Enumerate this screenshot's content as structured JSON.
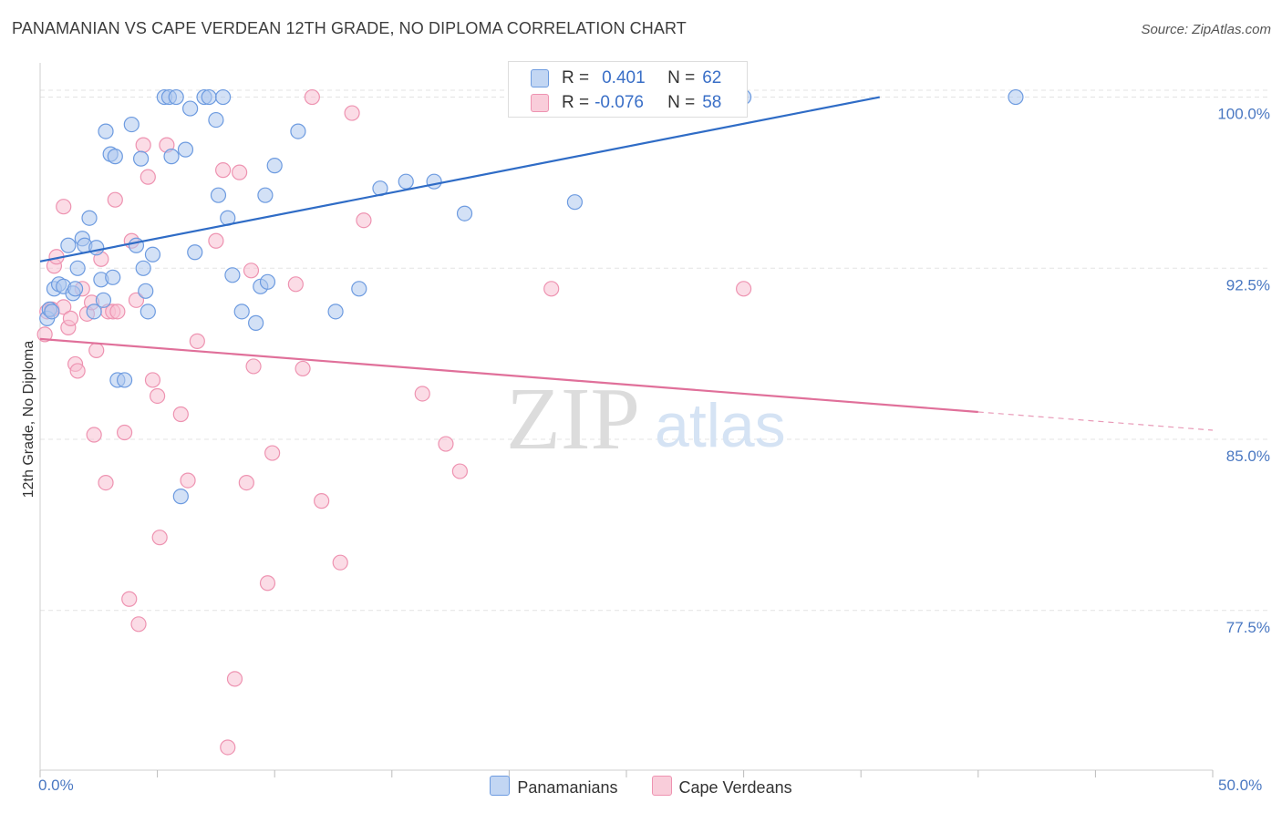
{
  "title": "PANAMANIAN VS CAPE VERDEAN 12TH GRADE, NO DIPLOMA CORRELATION CHART",
  "source": "Source: ZipAtlas.com",
  "watermark": {
    "zip": "ZIP",
    "atlas": "atlas"
  },
  "colors": {
    "blue_fill": "#aec8ef",
    "blue_stroke": "#6d9be0",
    "blue_line": "#2f6cc6",
    "pink_fill": "#f7bfd1",
    "pink_stroke": "#ee93b1",
    "pink_line": "#e0709a",
    "grid": "#e3e3e3",
    "tick_text": "#4a78c2"
  },
  "legend_stats": {
    "r_label": "R =",
    "n_label": "N =",
    "blue": {
      "r": "0.401",
      "n": "62"
    },
    "pink": {
      "r": "-0.076",
      "n": "58"
    }
  },
  "chart_data": {
    "type": "scatter",
    "title": "PANAMANIAN VS CAPE VERDEAN 12TH GRADE, NO DIPLOMA CORRELATION CHART",
    "xlabel": "",
    "ylabel": "12th Grade, No Diploma",
    "xlim": [
      0,
      50
    ],
    "ylim": [
      70.5,
      101.5
    ],
    "x_tick_labels": [
      "0.0%",
      "50.0%"
    ],
    "y_ticks": [
      77.5,
      85.0,
      92.5,
      100.0
    ],
    "y_tick_labels": [
      "77.5%",
      "85.0%",
      "92.5%",
      "100.0%"
    ],
    "grid": true,
    "legend_position": "bottom",
    "series": [
      {
        "name": "Panamanians",
        "trend": {
          "x": [
            0,
            35.8
          ],
          "y": [
            92.8,
            100.0
          ]
        },
        "points": [
          [
            0.3,
            90.3
          ],
          [
            0.4,
            90.7
          ],
          [
            0.5,
            90.6
          ],
          [
            0.6,
            91.6
          ],
          [
            0.8,
            91.8
          ],
          [
            1.0,
            91.7
          ],
          [
            1.2,
            93.5
          ],
          [
            1.4,
            91.4
          ],
          [
            1.5,
            91.6
          ],
          [
            1.6,
            92.5
          ],
          [
            1.8,
            93.8
          ],
          [
            1.9,
            93.5
          ],
          [
            2.1,
            94.7
          ],
          [
            2.3,
            90.6
          ],
          [
            2.4,
            93.4
          ],
          [
            2.6,
            92.0
          ],
          [
            2.7,
            91.1
          ],
          [
            2.8,
            98.5
          ],
          [
            3.0,
            97.5
          ],
          [
            3.1,
            92.1
          ],
          [
            3.2,
            97.4
          ],
          [
            3.3,
            87.6
          ],
          [
            3.6,
            87.6
          ],
          [
            3.9,
            98.8
          ],
          [
            4.1,
            93.5
          ],
          [
            4.3,
            97.3
          ],
          [
            4.4,
            92.5
          ],
          [
            4.5,
            91.5
          ],
          [
            4.6,
            90.6
          ],
          [
            4.8,
            93.1
          ],
          [
            5.3,
            100.0
          ],
          [
            5.5,
            100.0
          ],
          [
            5.6,
            97.4
          ],
          [
            5.8,
            100.0
          ],
          [
            6.0,
            82.5
          ],
          [
            6.2,
            97.7
          ],
          [
            6.4,
            99.5
          ],
          [
            6.6,
            93.2
          ],
          [
            7.0,
            100.0
          ],
          [
            7.2,
            100.0
          ],
          [
            7.5,
            99.0
          ],
          [
            7.6,
            95.7
          ],
          [
            7.8,
            100.0
          ],
          [
            8.0,
            94.7
          ],
          [
            8.2,
            92.2
          ],
          [
            8.6,
            90.6
          ],
          [
            9.2,
            90.1
          ],
          [
            9.4,
            91.7
          ],
          [
            9.6,
            95.7
          ],
          [
            9.7,
            91.9
          ],
          [
            10.0,
            97.0
          ],
          [
            11.0,
            98.5
          ],
          [
            12.6,
            90.6
          ],
          [
            13.6,
            91.6
          ],
          [
            14.5,
            96.0
          ],
          [
            15.6,
            96.3
          ],
          [
            16.8,
            96.3
          ],
          [
            18.1,
            94.9
          ],
          [
            22.8,
            95.4
          ],
          [
            23.0,
            100.0
          ],
          [
            30.0,
            100.0
          ],
          [
            41.6,
            100.0
          ]
        ]
      },
      {
        "name": "Cape Verdeans",
        "trend": {
          "x": [
            0,
            40
          ],
          "y": [
            89.4,
            86.2
          ]
        },
        "trend_dashed": {
          "x": [
            40,
            50
          ],
          "y": [
            86.2,
            85.4
          ]
        },
        "points": [
          [
            0.2,
            89.6
          ],
          [
            0.3,
            90.6
          ],
          [
            0.5,
            90.7
          ],
          [
            0.6,
            92.6
          ],
          [
            0.7,
            93.0
          ],
          [
            1.0,
            95.2
          ],
          [
            1.0,
            90.8
          ],
          [
            1.2,
            89.9
          ],
          [
            1.3,
            90.3
          ],
          [
            1.5,
            88.3
          ],
          [
            1.6,
            88.0
          ],
          [
            1.8,
            91.6
          ],
          [
            2.0,
            90.5
          ],
          [
            2.2,
            91.0
          ],
          [
            2.3,
            85.2
          ],
          [
            2.4,
            88.9
          ],
          [
            2.6,
            92.9
          ],
          [
            2.8,
            83.1
          ],
          [
            2.9,
            90.6
          ],
          [
            3.1,
            90.6
          ],
          [
            3.2,
            95.5
          ],
          [
            3.3,
            90.6
          ],
          [
            3.6,
            85.3
          ],
          [
            3.8,
            78.0
          ],
          [
            3.9,
            93.7
          ],
          [
            4.1,
            91.1
          ],
          [
            4.2,
            76.9
          ],
          [
            4.4,
            97.9
          ],
          [
            4.6,
            96.5
          ],
          [
            4.8,
            87.6
          ],
          [
            5.0,
            86.9
          ],
          [
            5.1,
            80.7
          ],
          [
            5.4,
            97.9
          ],
          [
            6.0,
            86.1
          ],
          [
            6.3,
            83.2
          ],
          [
            6.7,
            89.3
          ],
          [
            7.5,
            93.7
          ],
          [
            7.8,
            96.8
          ],
          [
            8.0,
            71.5
          ],
          [
            8.3,
            74.5
          ],
          [
            8.5,
            96.7
          ],
          [
            8.8,
            83.1
          ],
          [
            9.0,
            92.4
          ],
          [
            9.1,
            88.2
          ],
          [
            9.7,
            78.7
          ],
          [
            9.9,
            84.4
          ],
          [
            10.9,
            91.8
          ],
          [
            11.2,
            88.1
          ],
          [
            11.6,
            100.0
          ],
          [
            12.0,
            82.3
          ],
          [
            12.8,
            79.6
          ],
          [
            13.3,
            99.3
          ],
          [
            13.8,
            94.6
          ],
          [
            16.3,
            87.0
          ],
          [
            17.3,
            84.8
          ],
          [
            17.9,
            83.6
          ],
          [
            21.8,
            91.6
          ],
          [
            30.0,
            91.6
          ]
        ]
      }
    ]
  }
}
